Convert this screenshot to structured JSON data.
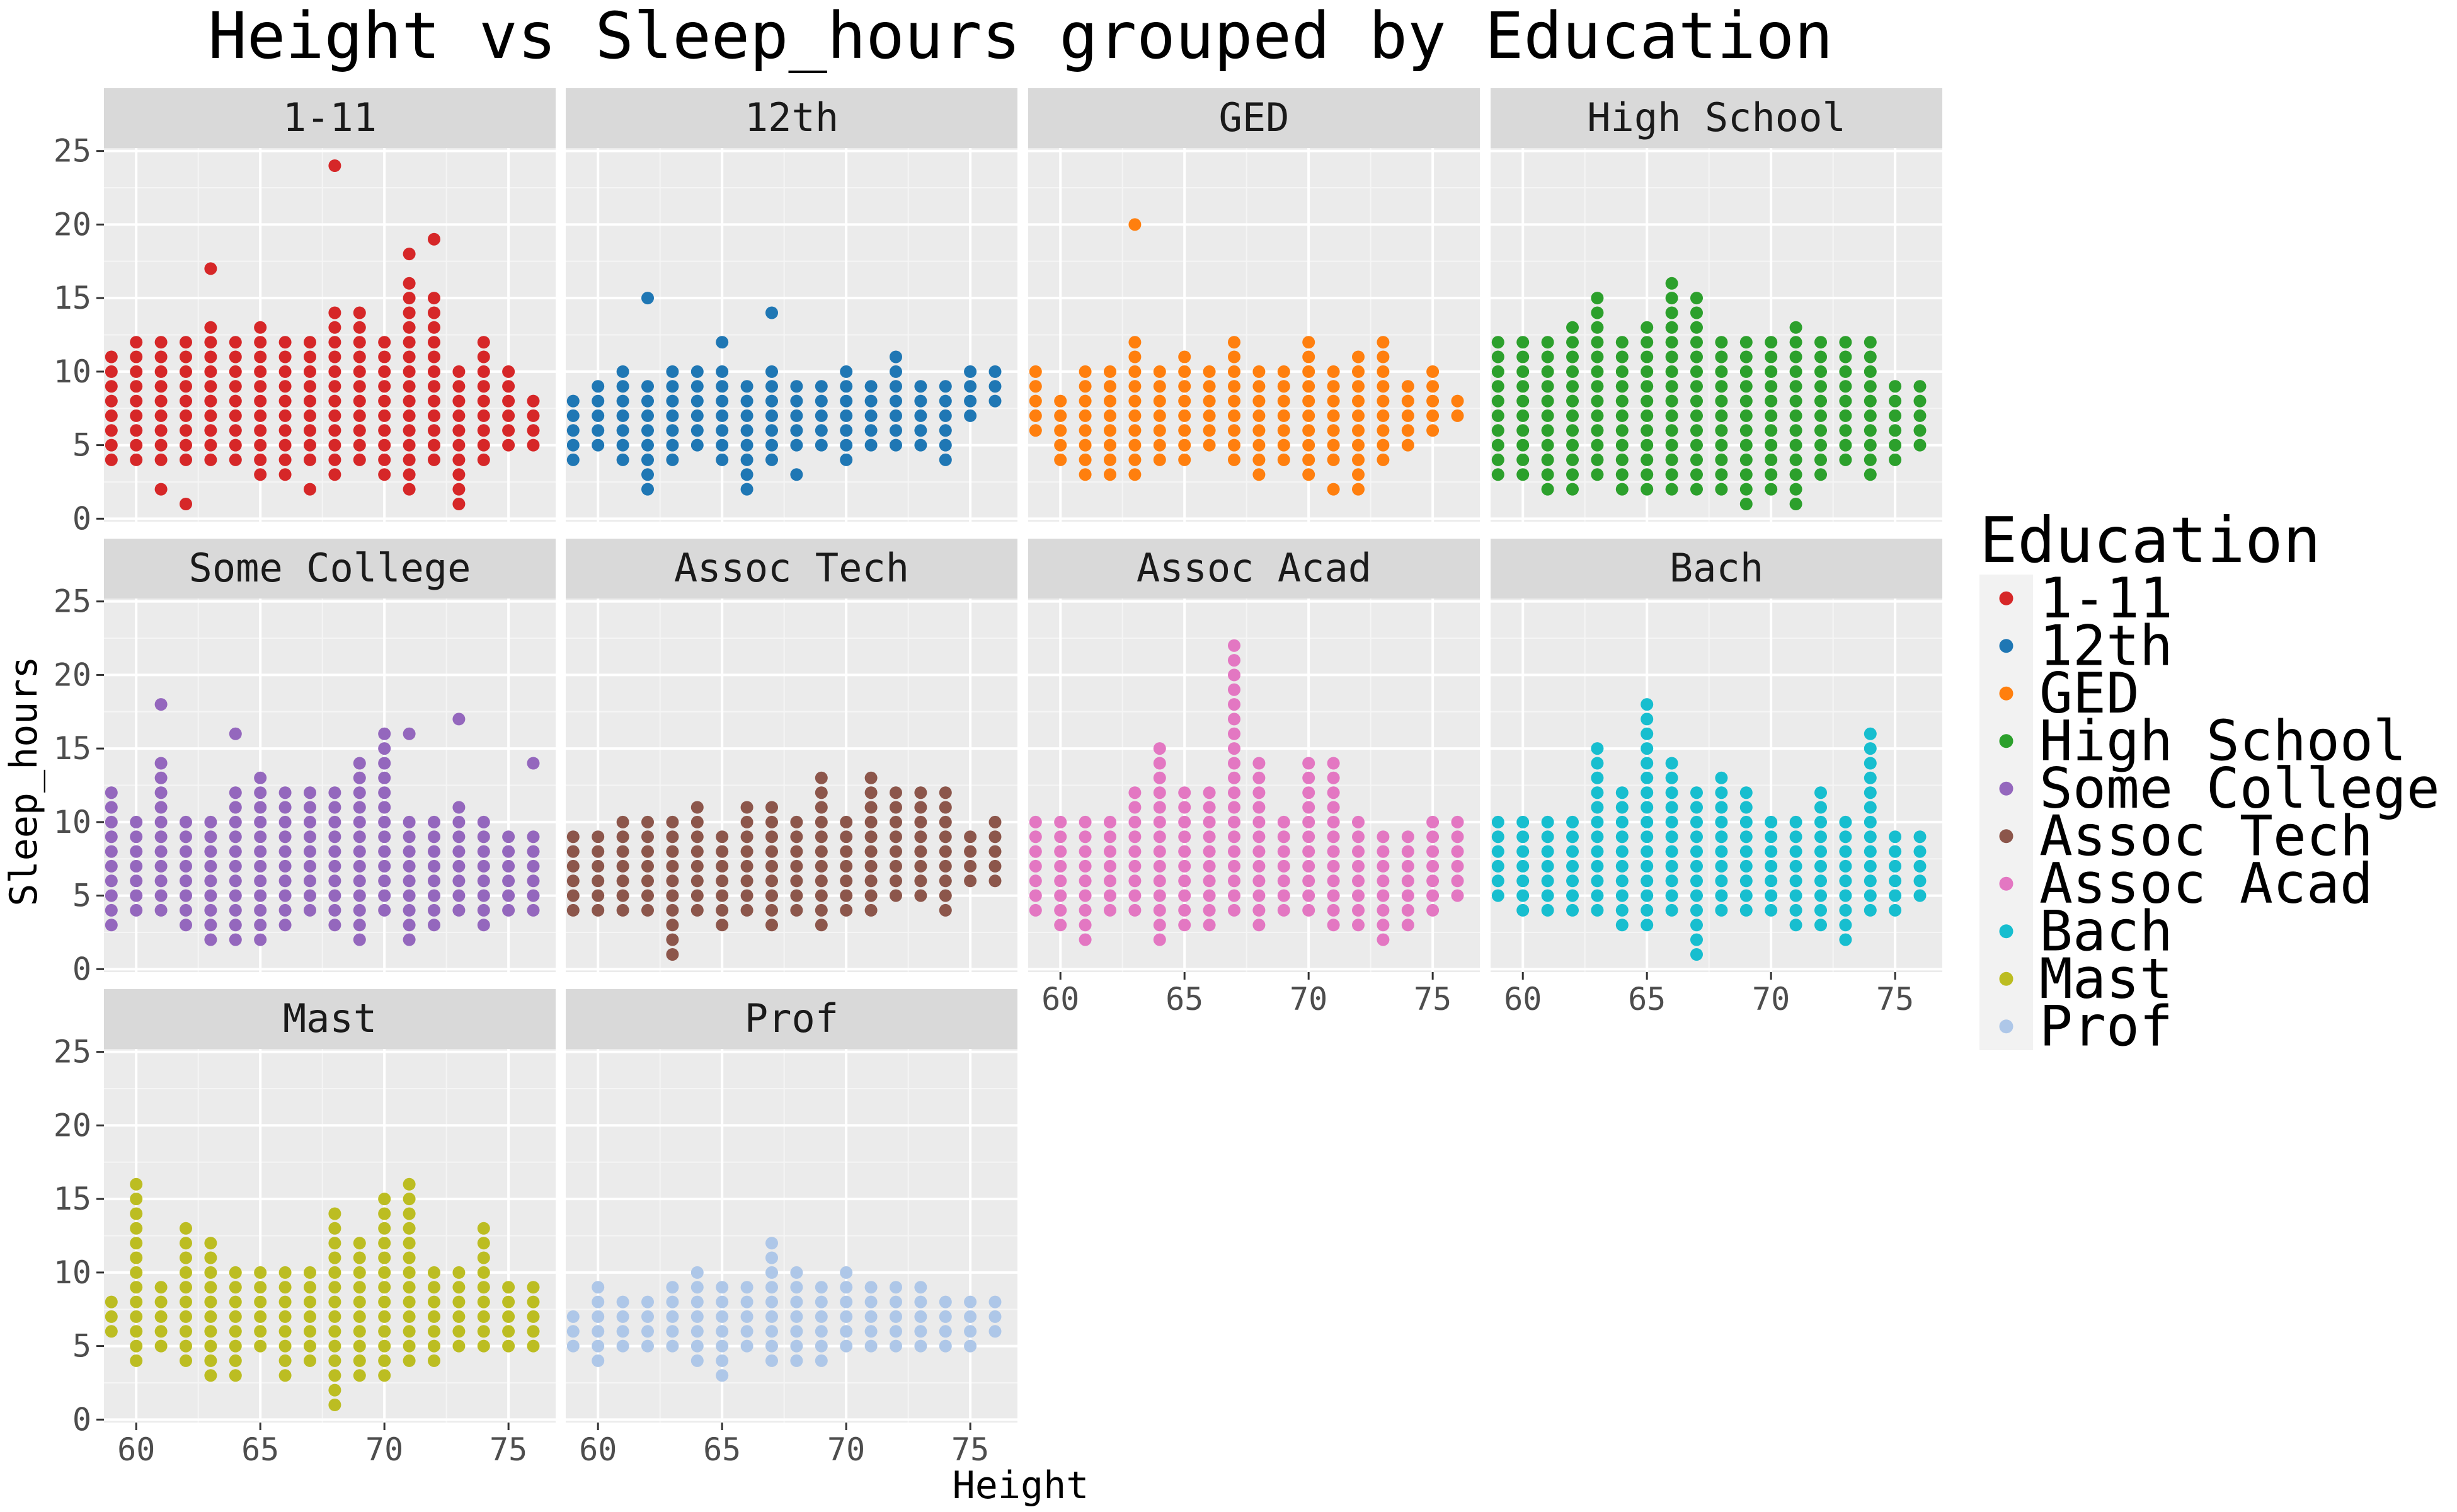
{
  "chart_data": {
    "type": "scatter",
    "title": "Height vs Sleep_hours grouped by Education",
    "xlabel": "Height",
    "ylabel": "Sleep_hours",
    "xlim": [
      58.7,
      76.9
    ],
    "ylim": [
      -0.2,
      25.2
    ],
    "x_ticks": [
      60,
      65,
      70,
      75
    ],
    "y_ticks": [
      0,
      5,
      10,
      15,
      20,
      25
    ],
    "grid": true,
    "facet_by": "Education",
    "facet_columns": 4,
    "legend": {
      "title": "Education",
      "placement": "right"
    },
    "panels": [
      {
        "label": "1-11",
        "color": "#D62728"
      },
      {
        "label": "12th",
        "color": "#1F77B4"
      },
      {
        "label": "GED",
        "color": "#FF7F0E"
      },
      {
        "label": "High School",
        "color": "#2CA02C"
      },
      {
        "label": "Some College",
        "color": "#9467BD"
      },
      {
        "label": "Assoc Tech",
        "color": "#8C564B"
      },
      {
        "label": "Assoc Acad",
        "color": "#E377C2"
      },
      {
        "label": "Bach",
        "color": "#17BECF"
      },
      {
        "label": "Mast",
        "color": "#BCBD22"
      },
      {
        "label": "Prof",
        "color": "#AEC7E8"
      }
    ],
    "series": [
      {
        "name": "1-11",
        "ranges": [
          [
            59,
            4,
            11
          ],
          [
            60,
            4,
            12
          ],
          [
            61,
            4,
            12
          ],
          [
            62,
            4,
            12
          ],
          [
            63,
            4,
            13
          ],
          [
            64,
            4,
            12
          ],
          [
            65,
            3,
            13
          ],
          [
            66,
            3,
            12
          ],
          [
            67,
            4,
            12
          ],
          [
            68,
            3,
            14
          ],
          [
            69,
            4,
            14
          ],
          [
            70,
            3,
            12
          ],
          [
            71,
            3,
            16
          ],
          [
            72,
            4,
            15
          ],
          [
            73,
            1,
            10
          ],
          [
            74,
            4,
            12
          ],
          [
            75,
            5,
            10
          ],
          [
            76,
            5,
            8
          ]
        ],
        "points": [
          [
            61,
            2
          ],
          [
            62,
            1
          ],
          [
            63,
            17
          ],
          [
            67,
            2
          ],
          [
            68,
            24
          ],
          [
            68,
            13
          ],
          [
            71,
            18
          ],
          [
            71,
            2
          ],
          [
            72,
            19
          ],
          [
            73,
            2
          ]
        ]
      },
      {
        "name": "12th",
        "ranges": [
          [
            59,
            4,
            8
          ],
          [
            60,
            5,
            9
          ],
          [
            61,
            4,
            10
          ],
          [
            62,
            3,
            9
          ],
          [
            63,
            4,
            10
          ],
          [
            64,
            5,
            10
          ],
          [
            65,
            4,
            10
          ],
          [
            66,
            3,
            9
          ],
          [
            67,
            4,
            10
          ],
          [
            68,
            5,
            9
          ],
          [
            69,
            5,
            9
          ],
          [
            70,
            4,
            10
          ],
          [
            71,
            5,
            9
          ],
          [
            72,
            5,
            10
          ],
          [
            73,
            5,
            9
          ],
          [
            74,
            5,
            9
          ],
          [
            75,
            7,
            10
          ],
          [
            76,
            8,
            10
          ]
        ],
        "points": [
          [
            62,
            15
          ],
          [
            62,
            2
          ],
          [
            65,
            12
          ],
          [
            66,
            2
          ],
          [
            67,
            14
          ],
          [
            68,
            3
          ],
          [
            72,
            11
          ],
          [
            74,
            4
          ]
        ]
      },
      {
        "name": "GED",
        "ranges": [
          [
            59,
            6,
            10
          ],
          [
            60,
            4,
            8
          ],
          [
            61,
            3,
            10
          ],
          [
            62,
            4,
            10
          ],
          [
            63,
            3,
            12
          ],
          [
            64,
            4,
            10
          ],
          [
            65,
            4,
            11
          ],
          [
            66,
            5,
            10
          ],
          [
            67,
            4,
            12
          ],
          [
            68,
            3,
            10
          ],
          [
            69,
            4,
            10
          ],
          [
            70,
            3,
            12
          ],
          [
            71,
            4,
            10
          ],
          [
            72,
            3,
            11
          ],
          [
            73,
            4,
            12
          ],
          [
            74,
            5,
            9
          ],
          [
            75,
            6,
            10
          ],
          [
            76,
            7,
            8
          ]
        ],
        "points": [
          [
            63,
            20
          ],
          [
            61,
            3
          ],
          [
            62,
            3
          ],
          [
            70,
            3
          ],
          [
            71,
            2
          ],
          [
            72,
            2
          ]
        ]
      },
      {
        "name": "High School",
        "ranges": [
          [
            59,
            3,
            12
          ],
          [
            60,
            3,
            12
          ],
          [
            61,
            2,
            12
          ],
          [
            62,
            2,
            13
          ],
          [
            63,
            3,
            15
          ],
          [
            64,
            2,
            12
          ],
          [
            65,
            2,
            13
          ],
          [
            66,
            2,
            16
          ],
          [
            67,
            2,
            15
          ],
          [
            68,
            2,
            12
          ],
          [
            69,
            1,
            12
          ],
          [
            70,
            2,
            12
          ],
          [
            71,
            1,
            13
          ],
          [
            72,
            3,
            12
          ],
          [
            73,
            4,
            12
          ],
          [
            74,
            3,
            12
          ],
          [
            75,
            4,
            9
          ],
          [
            76,
            5,
            9
          ]
        ],
        "points": [
          [
            69,
            1
          ],
          [
            71,
            1
          ]
        ]
      },
      {
        "name": "Some College",
        "ranges": [
          [
            59,
            3,
            12
          ],
          [
            60,
            4,
            10
          ],
          [
            61,
            4,
            14
          ],
          [
            62,
            3,
            10
          ],
          [
            63,
            2,
            10
          ],
          [
            64,
            2,
            12
          ],
          [
            65,
            2,
            13
          ],
          [
            66,
            3,
            12
          ],
          [
            67,
            4,
            12
          ],
          [
            68,
            3,
            12
          ],
          [
            69,
            2,
            14
          ],
          [
            70,
            4,
            16
          ],
          [
            71,
            2,
            10
          ],
          [
            72,
            3,
            10
          ],
          [
            73,
            4,
            11
          ],
          [
            74,
            3,
            10
          ],
          [
            75,
            4,
            9
          ],
          [
            76,
            4,
            9
          ]
        ],
        "points": [
          [
            61,
            18
          ],
          [
            64,
            16
          ],
          [
            70,
            16
          ],
          [
            71,
            16
          ],
          [
            73,
            17
          ],
          [
            76,
            14
          ]
        ]
      },
      {
        "name": "Assoc Tech",
        "ranges": [
          [
            59,
            4,
            9
          ],
          [
            60,
            4,
            9
          ],
          [
            61,
            4,
            10
          ],
          [
            62,
            4,
            10
          ],
          [
            63,
            2,
            10
          ],
          [
            64,
            4,
            11
          ],
          [
            65,
            3,
            9
          ],
          [
            66,
            4,
            11
          ],
          [
            67,
            3,
            11
          ],
          [
            68,
            4,
            10
          ],
          [
            69,
            3,
            13
          ],
          [
            70,
            4,
            10
          ],
          [
            71,
            4,
            13
          ],
          [
            72,
            5,
            12
          ],
          [
            73,
            5,
            12
          ],
          [
            74,
            4,
            12
          ],
          [
            75,
            6,
            9
          ],
          [
            76,
            6,
            10
          ]
        ],
        "points": [
          [
            63,
            1
          ],
          [
            63,
            2
          ]
        ]
      },
      {
        "name": "Assoc Acad",
        "ranges": [
          [
            59,
            4,
            10
          ],
          [
            60,
            3,
            10
          ],
          [
            61,
            2,
            10
          ],
          [
            62,
            4,
            10
          ],
          [
            63,
            4,
            12
          ],
          [
            64,
            2,
            15
          ],
          [
            65,
            3,
            12
          ],
          [
            66,
            3,
            12
          ],
          [
            67,
            4,
            22
          ],
          [
            68,
            3,
            14
          ],
          [
            69,
            4,
            10
          ],
          [
            70,
            4,
            14
          ],
          [
            71,
            3,
            14
          ],
          [
            72,
            3,
            10
          ],
          [
            73,
            2,
            9
          ],
          [
            74,
            3,
            9
          ],
          [
            75,
            4,
            10
          ],
          [
            76,
            5,
            10
          ]
        ],
        "points": [
          [
            67,
            22
          ]
        ]
      },
      {
        "name": "Bach",
        "ranges": [
          [
            59,
            5,
            10
          ],
          [
            60,
            4,
            10
          ],
          [
            61,
            4,
            10
          ],
          [
            62,
            4,
            10
          ],
          [
            63,
            4,
            15
          ],
          [
            64,
            3,
            12
          ],
          [
            65,
            3,
            18
          ],
          [
            66,
            4,
            14
          ],
          [
            67,
            1,
            12
          ],
          [
            68,
            4,
            13
          ],
          [
            69,
            4,
            12
          ],
          [
            70,
            4,
            10
          ],
          [
            71,
            3,
            10
          ],
          [
            72,
            3,
            12
          ],
          [
            73,
            2,
            10
          ],
          [
            74,
            4,
            16
          ],
          [
            75,
            4,
            9
          ],
          [
            76,
            5,
            9
          ]
        ],
        "points": [
          [
            65,
            18
          ],
          [
            74,
            16
          ],
          [
            67,
            1
          ],
          [
            73,
            2
          ]
        ]
      },
      {
        "name": "Mast",
        "ranges": [
          [
            59,
            6,
            8
          ],
          [
            60,
            4,
            16
          ],
          [
            61,
            5,
            9
          ],
          [
            62,
            4,
            13
          ],
          [
            63,
            3,
            12
          ],
          [
            64,
            3,
            10
          ],
          [
            65,
            5,
            10
          ],
          [
            66,
            3,
            10
          ],
          [
            67,
            4,
            10
          ],
          [
            68,
            1,
            14
          ],
          [
            69,
            3,
            12
          ],
          [
            70,
            3,
            15
          ],
          [
            71,
            4,
            16
          ],
          [
            72,
            4,
            10
          ],
          [
            73,
            5,
            10
          ],
          [
            74,
            5,
            13
          ],
          [
            75,
            5,
            9
          ],
          [
            76,
            5,
            9
          ]
        ],
        "points": [
          [
            60,
            16
          ],
          [
            71,
            16
          ],
          [
            68,
            1
          ]
        ]
      },
      {
        "name": "Prof",
        "ranges": [
          [
            59,
            5,
            7
          ],
          [
            60,
            4,
            9
          ],
          [
            61,
            5,
            8
          ],
          [
            62,
            5,
            8
          ],
          [
            63,
            5,
            9
          ],
          [
            64,
            4,
            10
          ],
          [
            65,
            3,
            9
          ],
          [
            66,
            5,
            9
          ],
          [
            67,
            4,
            12
          ],
          [
            68,
            4,
            10
          ],
          [
            69,
            4,
            9
          ],
          [
            70,
            5,
            10
          ],
          [
            71,
            5,
            9
          ],
          [
            72,
            5,
            9
          ],
          [
            73,
            5,
            9
          ],
          [
            74,
            5,
            8
          ],
          [
            75,
            5,
            8
          ],
          [
            76,
            6,
            8
          ]
        ],
        "points": [
          [
            67,
            12
          ],
          [
            65,
            3
          ]
        ]
      }
    ]
  }
}
